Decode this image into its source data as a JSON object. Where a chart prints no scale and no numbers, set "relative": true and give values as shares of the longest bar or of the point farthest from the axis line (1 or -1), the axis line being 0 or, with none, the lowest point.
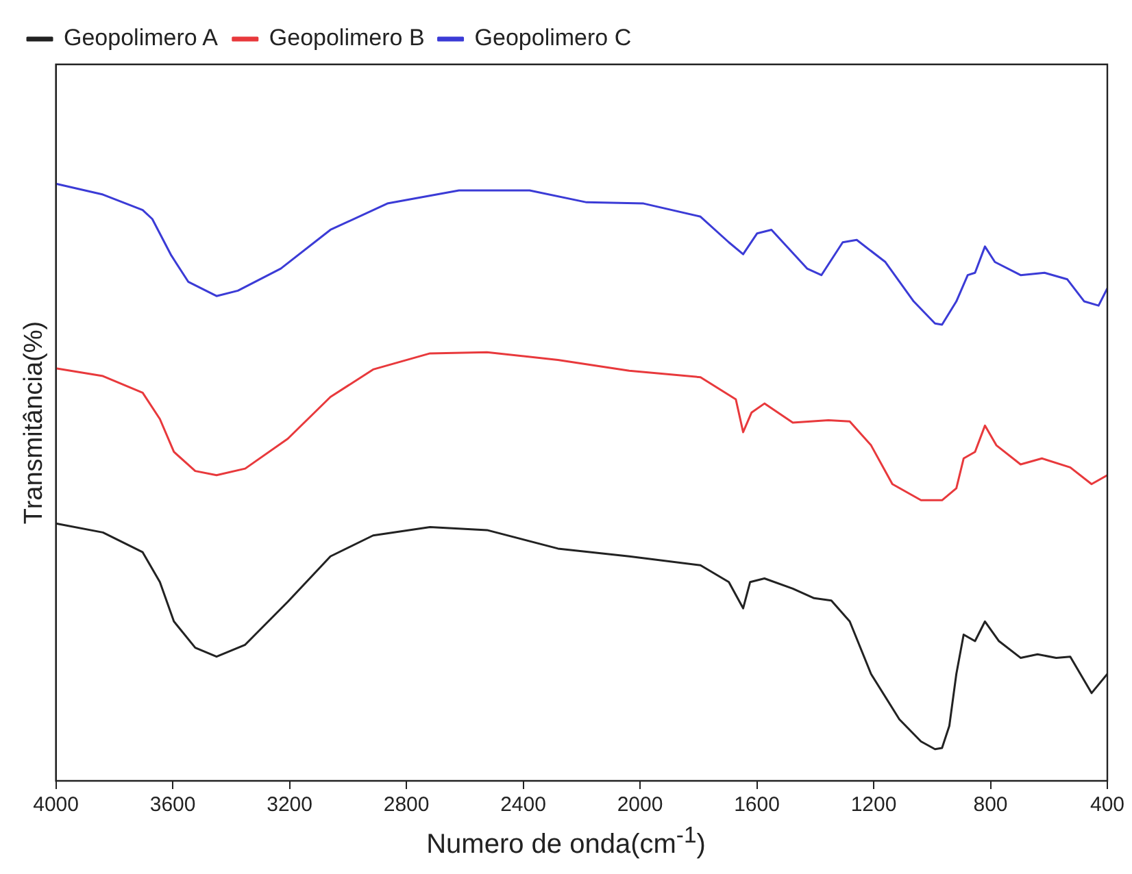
{
  "chart_data": {
    "type": "line",
    "xlabel": "Numero de onda(cm$^{-1}$)",
    "ylabel": "Transmitância(%)",
    "relative": true,
    "xlim": [
      4000,
      400
    ],
    "xticks": [
      4000,
      3600,
      3200,
      2800,
      2400,
      2000,
      1600,
      1200,
      800,
      400
    ],
    "legend": "top left",
    "marker": "none",
    "line_style": "solid",
    "series": [
      {
        "name": "Geopolimero A",
        "color": "#222222",
        "x": [
          4000,
          3839,
          3703,
          3644,
          3596,
          3523,
          3450,
          3352,
          3206,
          3060,
          2914,
          2719,
          2524,
          2281,
          2037,
          1793,
          1696,
          1647,
          1623,
          1574,
          1477,
          1404,
          1345,
          1282,
          1209,
          1112,
          1038,
          990,
          966,
          941,
          917,
          892,
          853,
          819,
          771,
          697,
          639,
          575,
          527,
          454,
          400
        ],
        "values": [
          0.431,
          0.416,
          0.383,
          0.333,
          0.267,
          0.223,
          0.208,
          0.228,
          0.3,
          0.376,
          0.411,
          0.425,
          0.42,
          0.389,
          0.376,
          0.361,
          0.333,
          0.289,
          0.333,
          0.339,
          0.322,
          0.306,
          0.302,
          0.267,
          0.179,
          0.103,
          0.066,
          0.053,
          0.055,
          0.092,
          0.179,
          0.245,
          0.234,
          0.267,
          0.234,
          0.206,
          0.212,
          0.206,
          0.208,
          0.147,
          0.179
        ]
      },
      {
        "name": "Geopolimero B",
        "color": "#e8393c",
        "x": [
          4000,
          3839,
          3703,
          3644,
          3596,
          3523,
          3450,
          3352,
          3206,
          3060,
          2914,
          2719,
          2524,
          2281,
          2037,
          1793,
          1672,
          1647,
          1618,
          1574,
          1477,
          1355,
          1282,
          1209,
          1136,
          1038,
          966,
          917,
          892,
          853,
          819,
          780,
          697,
          624,
          527,
          454,
          400
        ],
        "values": [
          0.691,
          0.678,
          0.65,
          0.606,
          0.551,
          0.519,
          0.512,
          0.523,
          0.573,
          0.643,
          0.689,
          0.716,
          0.718,
          0.705,
          0.687,
          0.676,
          0.639,
          0.584,
          0.617,
          0.632,
          0.6,
          0.604,
          0.602,
          0.562,
          0.497,
          0.47,
          0.47,
          0.49,
          0.54,
          0.551,
          0.595,
          0.562,
          0.53,
          0.54,
          0.525,
          0.497,
          0.512
        ]
      },
      {
        "name": "Geopolimero C",
        "color": "#3b3bd6",
        "x": [
          4000,
          3839,
          3703,
          3670,
          3605,
          3547,
          3450,
          3377,
          3230,
          3060,
          2865,
          2620,
          2378,
          2183,
          1988,
          1793,
          1696,
          1647,
          1599,
          1550,
          1428,
          1379,
          1306,
          1258,
          1160,
          1063,
          990,
          966,
          917,
          878,
          853,
          819,
          785,
          697,
          615,
          537,
          479,
          430,
          400
        ],
        "values": [
          1.0,
          0.982,
          0.956,
          0.941,
          0.88,
          0.836,
          0.812,
          0.821,
          0.858,
          0.923,
          0.967,
          0.989,
          0.989,
          0.969,
          0.967,
          0.945,
          0.902,
          0.882,
          0.917,
          0.923,
          0.858,
          0.847,
          0.902,
          0.906,
          0.869,
          0.803,
          0.766,
          0.764,
          0.803,
          0.847,
          0.851,
          0.895,
          0.869,
          0.847,
          0.851,
          0.84,
          0.803,
          0.796,
          0.825
        ]
      }
    ]
  }
}
